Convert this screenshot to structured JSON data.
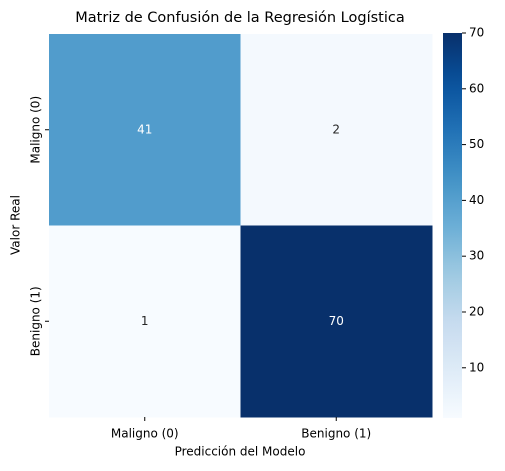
{
  "chart_data": {
    "type": "heatmap",
    "title": "Matriz de Confusión de la Regresión Logística",
    "xlabel": "Predicción del Modelo",
    "ylabel": "Valor Real",
    "x_categories": [
      "Maligno (0)",
      "Benigno (1)"
    ],
    "y_categories": [
      "Maligno (0)",
      "Benigno (1)"
    ],
    "values": [
      [
        41,
        2
      ],
      [
        1,
        70
      ]
    ],
    "colormap": "Blues",
    "zlim": [
      1,
      70
    ],
    "zticks": [
      10,
      20,
      30,
      40,
      50,
      60,
      70
    ]
  }
}
